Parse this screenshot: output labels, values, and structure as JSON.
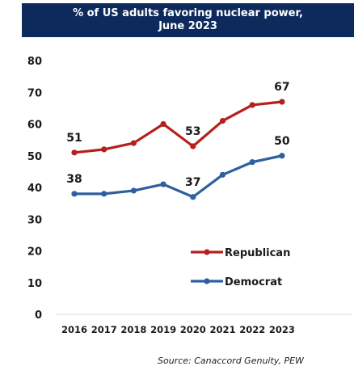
{
  "title_line1": "% of US adults favoring nuclear power,",
  "title_line2": "June 2023",
  "source": "Source: Canaccord Genuity, PEW",
  "chart_data": {
    "type": "line",
    "title": "% of US adults favoring nuclear power, June 2023",
    "categories": [
      "2016",
      "2017",
      "2018",
      "2019",
      "2020",
      "2021",
      "2022",
      "2023"
    ],
    "ylim": [
      0,
      80
    ],
    "yticks": [
      "0",
      "10",
      "20",
      "30",
      "40",
      "50",
      "60",
      "70",
      "80"
    ],
    "grid": false,
    "legend_position": "center-right",
    "series": [
      {
        "name": "Republican",
        "color": "#b5201e",
        "values": [
          51,
          52,
          54,
          60,
          53,
          61,
          66,
          67
        ],
        "data_labels": {
          "0": "51",
          "4": "53",
          "7": "67"
        }
      },
      {
        "name": "Democrat",
        "color": "#2e5f9e",
        "values": [
          38,
          38,
          39,
          41,
          37,
          44,
          48,
          50
        ],
        "data_labels": {
          "0": "38",
          "4": "37",
          "7": "50"
        }
      }
    ]
  }
}
